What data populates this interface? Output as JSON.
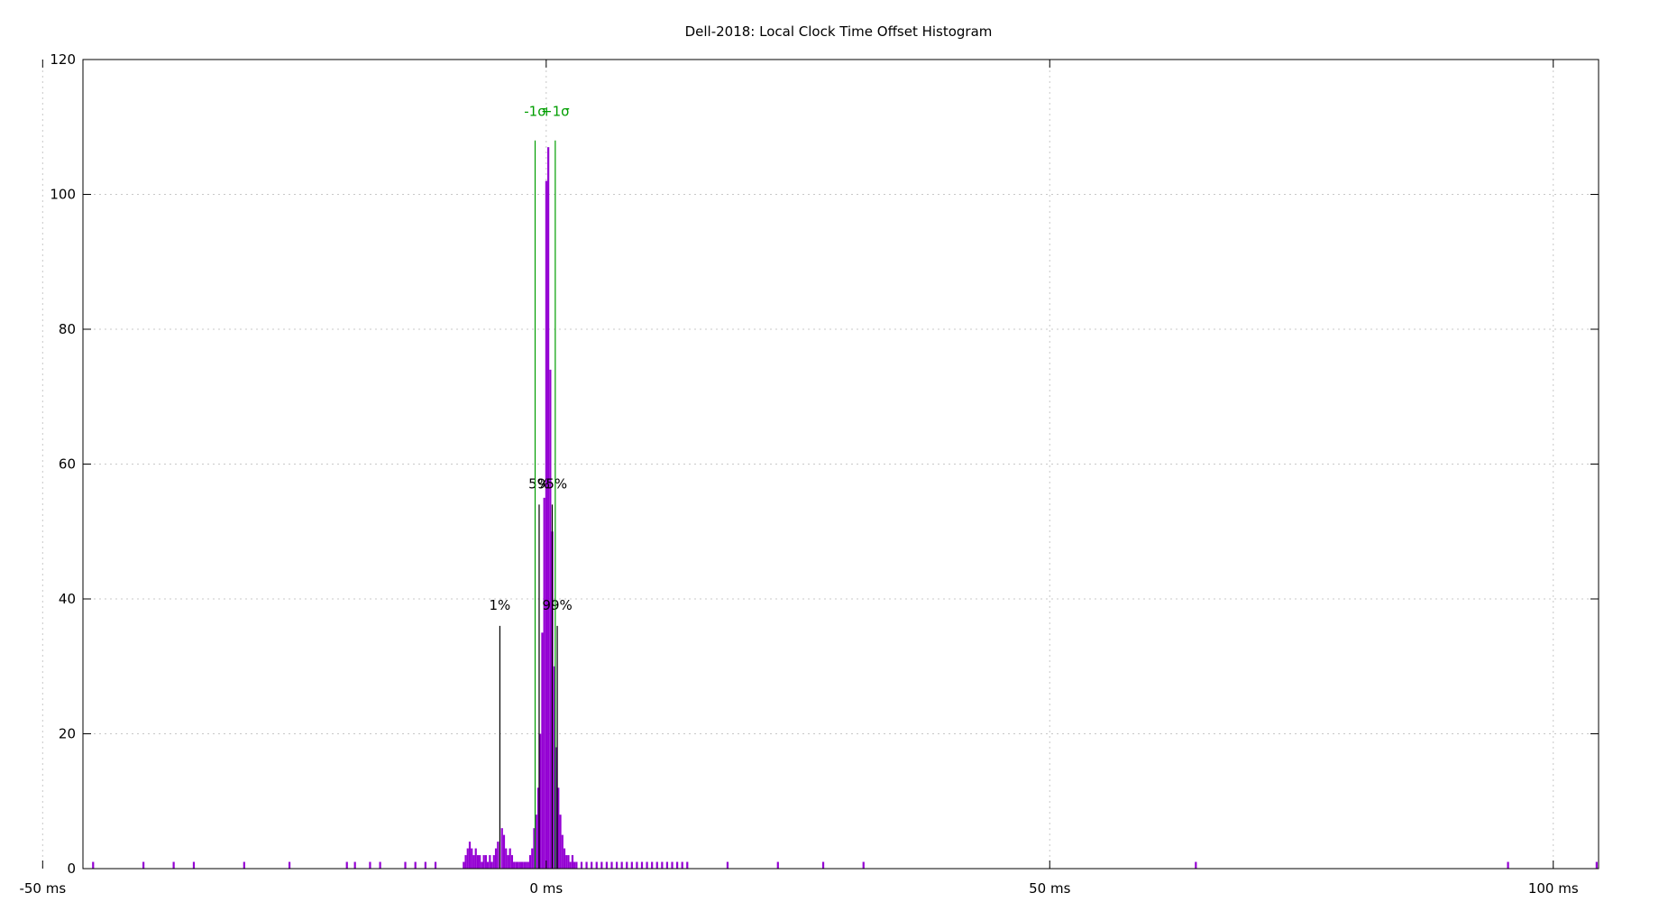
{
  "chart_data": {
    "type": "bar",
    "title": "Dell-2018: Local Clock Time Offset Histogram",
    "xlabel": "",
    "ylabel": "",
    "xlim": [
      -46,
      104.5
    ],
    "ylim": [
      0,
      120
    ],
    "grid": true,
    "x_ticks": [
      {
        "value": -50,
        "label": "-50 ms"
      },
      {
        "value": 0,
        "label": "0 ms"
      },
      {
        "value": 50,
        "label": "50 ms"
      },
      {
        "value": 100,
        "label": "100 ms"
      }
    ],
    "y_ticks": [
      {
        "value": 0,
        "label": "0"
      },
      {
        "value": 20,
        "label": "20"
      },
      {
        "value": 40,
        "label": "40"
      },
      {
        "value": 60,
        "label": "60"
      },
      {
        "value": 80,
        "label": "80"
      },
      {
        "value": 100,
        "label": "100"
      },
      {
        "value": 120,
        "label": "120"
      }
    ],
    "colors": {
      "histogram": "#9400d3",
      "sigma": "#009e00",
      "percentile": "#000000",
      "grid": "#c8c8c8",
      "axes": "#000000"
    },
    "percentile_markers": [
      {
        "label": "1%",
        "x": -4.6,
        "height": 36
      },
      {
        "label": "5%",
        "x": -0.7,
        "height": 54
      },
      {
        "label": "95%",
        "x": 0.6,
        "height": 54
      },
      {
        "label": "99%",
        "x": 1.1,
        "height": 36
      }
    ],
    "sigma_markers": [
      {
        "label": "-1σ",
        "x": -1.1,
        "height": 108
      },
      {
        "label": "+1σ",
        "x": 0.9,
        "height": 108
      }
    ],
    "histogram": [
      {
        "x": -45,
        "y": 1
      },
      {
        "x": -40,
        "y": 1
      },
      {
        "x": -37,
        "y": 1
      },
      {
        "x": -35,
        "y": 1
      },
      {
        "x": -30,
        "y": 1
      },
      {
        "x": -25.5,
        "y": 1
      },
      {
        "x": -19.8,
        "y": 1
      },
      {
        "x": -19,
        "y": 1
      },
      {
        "x": -17.5,
        "y": 1
      },
      {
        "x": -16.5,
        "y": 1
      },
      {
        "x": -14,
        "y": 1
      },
      {
        "x": -13,
        "y": 1
      },
      {
        "x": -12,
        "y": 1
      },
      {
        "x": -11,
        "y": 1
      },
      {
        "x": -8.2,
        "y": 1
      },
      {
        "x": -8.0,
        "y": 2
      },
      {
        "x": -7.8,
        "y": 3
      },
      {
        "x": -7.6,
        "y": 4
      },
      {
        "x": -7.4,
        "y": 3
      },
      {
        "x": -7.2,
        "y": 2
      },
      {
        "x": -7.0,
        "y": 3
      },
      {
        "x": -6.8,
        "y": 2
      },
      {
        "x": -6.6,
        "y": 2
      },
      {
        "x": -6.4,
        "y": 1
      },
      {
        "x": -6.2,
        "y": 2
      },
      {
        "x": -6.0,
        "y": 2
      },
      {
        "x": -5.8,
        "y": 1
      },
      {
        "x": -5.6,
        "y": 2
      },
      {
        "x": -5.4,
        "y": 1
      },
      {
        "x": -5.2,
        "y": 2
      },
      {
        "x": -5.0,
        "y": 3
      },
      {
        "x": -4.8,
        "y": 4
      },
      {
        "x": -4.4,
        "y": 6
      },
      {
        "x": -4.2,
        "y": 5
      },
      {
        "x": -4.0,
        "y": 3
      },
      {
        "x": -3.8,
        "y": 2
      },
      {
        "x": -3.6,
        "y": 3
      },
      {
        "x": -3.4,
        "y": 2
      },
      {
        "x": -3.2,
        "y": 1
      },
      {
        "x": -3.0,
        "y": 1
      },
      {
        "x": -2.8,
        "y": 1
      },
      {
        "x": -2.6,
        "y": 1
      },
      {
        "x": -2.4,
        "y": 1
      },
      {
        "x": -2.2,
        "y": 1
      },
      {
        "x": -2.0,
        "y": 1
      },
      {
        "x": -1.8,
        "y": 1
      },
      {
        "x": -1.6,
        "y": 2
      },
      {
        "x": -1.4,
        "y": 3
      },
      {
        "x": -1.2,
        "y": 6
      },
      {
        "x": -1.0,
        "y": 8
      },
      {
        "x": -0.8,
        "y": 12
      },
      {
        "x": -0.6,
        "y": 20
      },
      {
        "x": -0.4,
        "y": 35
      },
      {
        "x": -0.2,
        "y": 55
      },
      {
        "x": 0.0,
        "y": 102
      },
      {
        "x": 0.2,
        "y": 107
      },
      {
        "x": 0.4,
        "y": 74
      },
      {
        "x": 0.6,
        "y": 50
      },
      {
        "x": 0.8,
        "y": 30
      },
      {
        "x": 1.0,
        "y": 18
      },
      {
        "x": 1.2,
        "y": 12
      },
      {
        "x": 1.4,
        "y": 8
      },
      {
        "x": 1.6,
        "y": 5
      },
      {
        "x": 1.8,
        "y": 3
      },
      {
        "x": 2.0,
        "y": 2
      },
      {
        "x": 2.2,
        "y": 2
      },
      {
        "x": 2.4,
        "y": 1
      },
      {
        "x": 2.6,
        "y": 2
      },
      {
        "x": 2.8,
        "y": 1
      },
      {
        "x": 3.0,
        "y": 1
      },
      {
        "x": 3.5,
        "y": 1
      },
      {
        "x": 4.0,
        "y": 1
      },
      {
        "x": 4.5,
        "y": 1
      },
      {
        "x": 5.0,
        "y": 1
      },
      {
        "x": 5.5,
        "y": 1
      },
      {
        "x": 6.0,
        "y": 1
      },
      {
        "x": 6.5,
        "y": 1
      },
      {
        "x": 7.0,
        "y": 1
      },
      {
        "x": 7.5,
        "y": 1
      },
      {
        "x": 8.0,
        "y": 1
      },
      {
        "x": 8.5,
        "y": 1
      },
      {
        "x": 9.0,
        "y": 1
      },
      {
        "x": 9.5,
        "y": 1
      },
      {
        "x": 10.0,
        "y": 1
      },
      {
        "x": 10.5,
        "y": 1
      },
      {
        "x": 11.0,
        "y": 1
      },
      {
        "x": 11.5,
        "y": 1
      },
      {
        "x": 12.0,
        "y": 1
      },
      {
        "x": 12.5,
        "y": 1
      },
      {
        "x": 13.0,
        "y": 1
      },
      {
        "x": 13.5,
        "y": 1
      },
      {
        "x": 14.0,
        "y": 1
      },
      {
        "x": 18,
        "y": 1
      },
      {
        "x": 23,
        "y": 1
      },
      {
        "x": 27.5,
        "y": 1
      },
      {
        "x": 31.5,
        "y": 1
      },
      {
        "x": 64.5,
        "y": 1
      },
      {
        "x": 95.5,
        "y": 1
      },
      {
        "x": 104.3,
        "y": 1
      }
    ]
  }
}
